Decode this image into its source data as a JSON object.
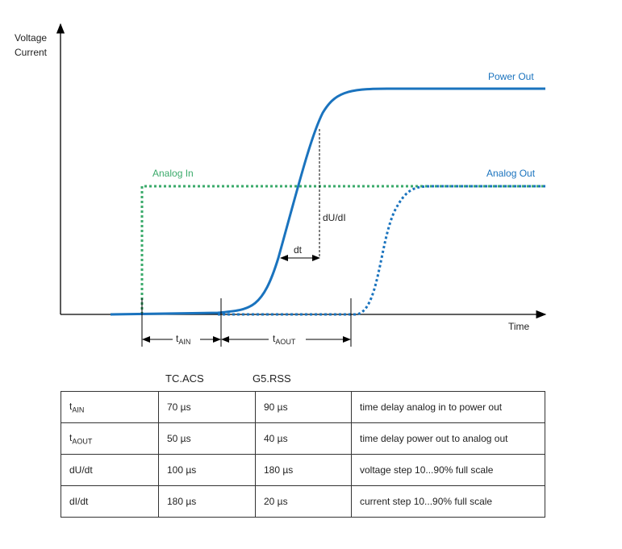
{
  "diagram": {
    "y_axis_label_1": "Voltage",
    "y_axis_label_2": "Current",
    "x_axis_label": "Time",
    "power_out_label": "Power Out",
    "analog_in_label": "Analog In",
    "analog_out_label": "Analog Out",
    "slope_label": "dU/dI",
    "dt_label": "dt",
    "t_ain": {
      "base": "t",
      "sub": "AIN"
    },
    "t_aout": {
      "base": "t",
      "sub": "AOUT"
    },
    "colors": {
      "power_out": "#1a73be",
      "analog_in": "#3aaa6a",
      "analog_out": "#1a73be"
    }
  },
  "table": {
    "headers": [
      "TC.ACS",
      "G5.RSS"
    ],
    "rows": [
      {
        "param_base": "t",
        "param_sub": "AIN",
        "tc": "70 µs",
        "g5": "90 µs",
        "desc": "time delay analog in to power out"
      },
      {
        "param_base": "t",
        "param_sub": "AOUT",
        "tc": "50 µs",
        "g5": "40 µs",
        "desc": "time delay power out to analog out"
      },
      {
        "param_base": "dU/dt",
        "param_sub": "",
        "tc": "100 µs",
        "g5": "180 µs",
        "desc": "voltage step 10...90% full scale"
      },
      {
        "param_base": "dI/dt",
        "param_sub": "",
        "tc": "180 µs",
        "g5": "20 µs",
        "desc": "current step 10...90% full scale"
      }
    ]
  }
}
